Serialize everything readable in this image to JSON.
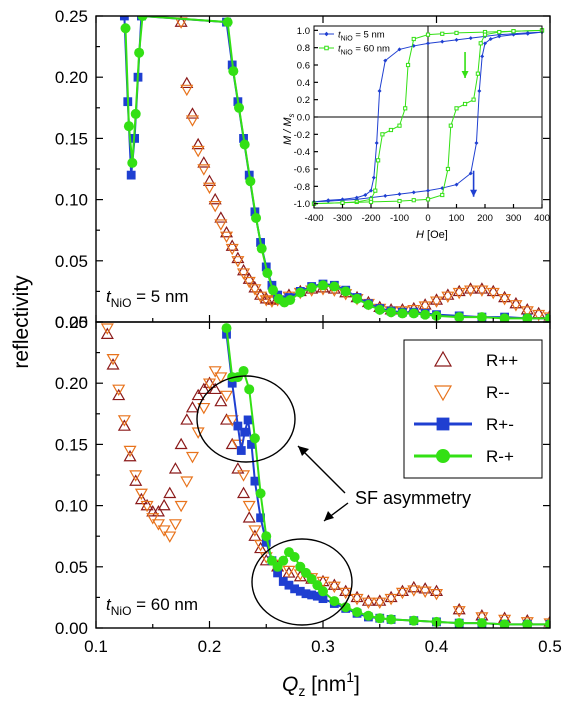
{
  "chart_data": [
    {
      "panel": "top",
      "type": "scatter",
      "ylabel": "reflectivity",
      "xlabel": "",
      "xlim": [
        0.1,
        0.5
      ],
      "ylim": [
        0.0,
        0.25
      ],
      "xticks": [
        "0.1",
        "0.2",
        "0.3",
        "0.4",
        "0.5"
      ],
      "yticks": [
        "0.00",
        "0.05",
        "0.10",
        "0.15",
        "0.20",
        "0.25"
      ],
      "annotation": {
        "t": "t",
        "sub": "NiO",
        "rest": " = 5 nm"
      },
      "series": [
        {
          "name": "R++",
          "marker": "triangle-up",
          "color": "#8b1a1a",
          "x": [
            0.175,
            0.18,
            0.185,
            0.19,
            0.195,
            0.2,
            0.205,
            0.21,
            0.215,
            0.22,
            0.225,
            0.23,
            0.235,
            0.24,
            0.245,
            0.25,
            0.255,
            0.26,
            0.27,
            0.28,
            0.29,
            0.3,
            0.31,
            0.32,
            0.33,
            0.34,
            0.35,
            0.36,
            0.37,
            0.38,
            0.39,
            0.4,
            0.41,
            0.42,
            0.43,
            0.44,
            0.45,
            0.46,
            0.47,
            0.48,
            0.49,
            0.5
          ],
          "y": [
            0.245,
            0.195,
            0.17,
            0.145,
            0.13,
            0.115,
            0.1,
            0.085,
            0.073,
            0.062,
            0.052,
            0.042,
            0.035,
            0.028,
            0.022,
            0.019,
            0.018,
            0.019,
            0.022,
            0.025,
            0.027,
            0.028,
            0.027,
            0.024,
            0.02,
            0.016,
            0.012,
            0.01,
            0.01,
            0.011,
            0.014,
            0.018,
            0.022,
            0.025,
            0.027,
            0.027,
            0.025,
            0.02,
            0.015,
            0.01,
            0.007,
            0.005
          ]
        },
        {
          "name": "R--",
          "marker": "triangle-down",
          "color": "#e8731c",
          "x": [
            0.175,
            0.18,
            0.185,
            0.19,
            0.195,
            0.2,
            0.205,
            0.21,
            0.215,
            0.22,
            0.225,
            0.23,
            0.235,
            0.24,
            0.245,
            0.25,
            0.255,
            0.26,
            0.27,
            0.28,
            0.29,
            0.3,
            0.31,
            0.32,
            0.33,
            0.34,
            0.35,
            0.36,
            0.37,
            0.38,
            0.39,
            0.4,
            0.41,
            0.42,
            0.43,
            0.44,
            0.45,
            0.46,
            0.47,
            0.48,
            0.49,
            0.5
          ],
          "y": [
            0.245,
            0.19,
            0.165,
            0.14,
            0.125,
            0.11,
            0.095,
            0.08,
            0.07,
            0.06,
            0.05,
            0.04,
            0.033,
            0.027,
            0.021,
            0.018,
            0.017,
            0.018,
            0.021,
            0.024,
            0.026,
            0.027,
            0.026,
            0.023,
            0.019,
            0.015,
            0.011,
            0.009,
            0.009,
            0.01,
            0.013,
            0.017,
            0.021,
            0.024,
            0.026,
            0.026,
            0.024,
            0.019,
            0.014,
            0.009,
            0.006,
            0.004
          ]
        },
        {
          "name": "R+-",
          "marker": "square",
          "color": "#1f3fd1",
          "x": [
            0.125,
            0.128,
            0.131,
            0.134,
            0.137,
            0.14,
            0.215,
            0.22,
            0.225,
            0.23,
            0.235,
            0.24,
            0.245,
            0.25,
            0.255,
            0.26,
            0.265,
            0.27,
            0.28,
            0.29,
            0.3,
            0.31,
            0.32,
            0.33,
            0.34,
            0.35,
            0.36,
            0.37,
            0.38,
            0.39,
            0.4,
            0.42,
            0.44,
            0.46,
            0.48,
            0.5
          ],
          "y": [
            0.25,
            0.18,
            0.12,
            0.15,
            0.2,
            0.25,
            0.245,
            0.21,
            0.18,
            0.15,
            0.12,
            0.09,
            0.065,
            0.045,
            0.03,
            0.022,
            0.018,
            0.02,
            0.025,
            0.029,
            0.031,
            0.03,
            0.026,
            0.02,
            0.015,
            0.011,
            0.009,
            0.008,
            0.008,
            0.007,
            0.006,
            0.005,
            0.004,
            0.004,
            0.003,
            0.003
          ]
        },
        {
          "name": "R-+",
          "marker": "circle",
          "color": "#33e014",
          "x": [
            0.126,
            0.129,
            0.132,
            0.135,
            0.138,
            0.141,
            0.216,
            0.221,
            0.226,
            0.231,
            0.236,
            0.241,
            0.246,
            0.251,
            0.256,
            0.261,
            0.266,
            0.271,
            0.28,
            0.29,
            0.3,
            0.31,
            0.32,
            0.33,
            0.34,
            0.35,
            0.36,
            0.37,
            0.38,
            0.39,
            0.4,
            0.42,
            0.44,
            0.46,
            0.48,
            0.5
          ],
          "y": [
            0.24,
            0.16,
            0.13,
            0.17,
            0.22,
            0.25,
            0.245,
            0.205,
            0.175,
            0.145,
            0.115,
            0.085,
            0.06,
            0.04,
            0.026,
            0.019,
            0.016,
            0.018,
            0.024,
            0.028,
            0.03,
            0.029,
            0.025,
            0.019,
            0.014,
            0.01,
            0.008,
            0.007,
            0.007,
            0.006,
            0.005,
            0.004,
            0.004,
            0.003,
            0.003,
            0.003
          ]
        }
      ]
    },
    {
      "panel": "bottom",
      "type": "scatter",
      "ylabel": "",
      "xlabel": "Q",
      "xlabel_sub": "z",
      "xlabel_unit": " [nm",
      "xlabel_sup": "1",
      "xlabel_end": "]",
      "xlim": [
        0.1,
        0.5
      ],
      "ylim": [
        0.0,
        0.25
      ],
      "xticks": [
        "0.1",
        "0.2",
        "0.3",
        "0.4",
        "0.5"
      ],
      "yticks": [
        "0.00",
        "0.05",
        "0.10",
        "0.15",
        "0.20",
        "0.25"
      ],
      "annotation": {
        "t": "t",
        "sub": "NiO",
        "rest": " = 60 nm"
      },
      "callout": "SF asymmetry",
      "series": [
        {
          "name": "R++",
          "marker": "triangle-up",
          "color": "#8b1a1a",
          "x": [
            0.11,
            0.115,
            0.12,
            0.125,
            0.13,
            0.135,
            0.14,
            0.145,
            0.15,
            0.155,
            0.16,
            0.165,
            0.17,
            0.175,
            0.18,
            0.185,
            0.19,
            0.195,
            0.2,
            0.205,
            0.21,
            0.215,
            0.22,
            0.225,
            0.23,
            0.235,
            0.24,
            0.245,
            0.25,
            0.26,
            0.27,
            0.28,
            0.29,
            0.3,
            0.31,
            0.32,
            0.33,
            0.34,
            0.35,
            0.36,
            0.37,
            0.38,
            0.39,
            0.4,
            0.42,
            0.44,
            0.46,
            0.48,
            0.5
          ],
          "y": [
            0.24,
            0.215,
            0.19,
            0.165,
            0.14,
            0.12,
            0.105,
            0.1,
            0.095,
            0.095,
            0.1,
            0.11,
            0.13,
            0.15,
            0.17,
            0.18,
            0.19,
            0.195,
            0.2,
            0.195,
            0.185,
            0.17,
            0.15,
            0.13,
            0.11,
            0.09,
            0.075,
            0.065,
            0.055,
            0.05,
            0.045,
            0.042,
            0.04,
            0.038,
            0.035,
            0.03,
            0.025,
            0.022,
            0.022,
            0.025,
            0.03,
            0.033,
            0.032,
            0.03,
            0.015,
            0.01,
            0.008,
            0.006,
            0.005
          ]
        },
        {
          "name": "R--",
          "marker": "triangle-down",
          "color": "#e8731c",
          "x": [
            0.11,
            0.115,
            0.12,
            0.125,
            0.13,
            0.135,
            0.14,
            0.145,
            0.15,
            0.155,
            0.16,
            0.165,
            0.17,
            0.175,
            0.18,
            0.185,
            0.19,
            0.195,
            0.2,
            0.205,
            0.21,
            0.215,
            0.22,
            0.225,
            0.23,
            0.235,
            0.24,
            0.245,
            0.25,
            0.26,
            0.27,
            0.28,
            0.29,
            0.3,
            0.31,
            0.32,
            0.33,
            0.34,
            0.35,
            0.36,
            0.37,
            0.38,
            0.39,
            0.4,
            0.42,
            0.44,
            0.46,
            0.48,
            0.5
          ],
          "y": [
            0.245,
            0.22,
            0.195,
            0.17,
            0.145,
            0.125,
            0.11,
            0.1,
            0.09,
            0.085,
            0.08,
            0.075,
            0.085,
            0.1,
            0.12,
            0.14,
            0.16,
            0.18,
            0.2,
            0.21,
            0.205,
            0.19,
            0.17,
            0.15,
            0.125,
            0.1,
            0.08,
            0.068,
            0.058,
            0.052,
            0.047,
            0.044,
            0.041,
            0.038,
            0.034,
            0.029,
            0.024,
            0.021,
            0.021,
            0.024,
            0.029,
            0.031,
            0.03,
            0.028,
            0.014,
            0.009,
            0.007,
            0.005,
            0.004
          ]
        },
        {
          "name": "R+-",
          "marker": "square",
          "color": "#1f3fd1",
          "x": [
            0.215,
            0.22,
            0.225,
            0.228,
            0.231,
            0.234,
            0.237,
            0.24,
            0.245,
            0.25,
            0.255,
            0.26,
            0.265,
            0.27,
            0.275,
            0.28,
            0.285,
            0.29,
            0.295,
            0.3,
            0.31,
            0.32,
            0.33,
            0.34,
            0.35,
            0.36,
            0.38,
            0.4,
            0.42,
            0.44,
            0.46,
            0.48,
            0.5
          ],
          "y": [
            0.24,
            0.2,
            0.165,
            0.145,
            0.16,
            0.17,
            0.15,
            0.12,
            0.09,
            0.07,
            0.055,
            0.045,
            0.038,
            0.035,
            0.032,
            0.03,
            0.028,
            0.027,
            0.026,
            0.024,
            0.02,
            0.016,
            0.012,
            0.009,
            0.008,
            0.007,
            0.006,
            0.005,
            0.004,
            0.004,
            0.003,
            0.003,
            0.003
          ]
        },
        {
          "name": "R-+",
          "marker": "circle",
          "color": "#33e014",
          "x": [
            0.215,
            0.22,
            0.225,
            0.23,
            0.235,
            0.24,
            0.245,
            0.25,
            0.255,
            0.26,
            0.265,
            0.27,
            0.275,
            0.28,
            0.285,
            0.29,
            0.295,
            0.3,
            0.31,
            0.32,
            0.33,
            0.34,
            0.35,
            0.36,
            0.38,
            0.4,
            0.42,
            0.44,
            0.46,
            0.48,
            0.5
          ],
          "y": [
            0.245,
            0.205,
            0.205,
            0.21,
            0.195,
            0.155,
            0.11,
            0.075,
            0.055,
            0.05,
            0.055,
            0.062,
            0.058,
            0.05,
            0.045,
            0.04,
            0.035,
            0.03,
            0.022,
            0.017,
            0.013,
            0.01,
            0.008,
            0.007,
            0.006,
            0.005,
            0.004,
            0.004,
            0.003,
            0.003,
            0.003
          ]
        }
      ]
    },
    {
      "panel": "inset",
      "type": "line",
      "xlabel": "H",
      "xlabel_unit": " [Oe]",
      "ylabel": "M / M",
      "ylabel_sub": "s",
      "xlim": [
        -400,
        400
      ],
      "ylim": [
        -1.05,
        1.05
      ],
      "xticks": [
        "-400",
        "-300",
        "-200",
        "-100",
        "0",
        "100",
        "200",
        "300",
        "400"
      ],
      "yticks": [
        "-1.0",
        "-0.8",
        "-0.6",
        "-0.4",
        "-0.2",
        "0.0",
        "0.2",
        "0.4",
        "0.6",
        "0.8",
        "1.0"
      ],
      "series": [
        {
          "name": "t_NiO = 5 nm",
          "legend_t": "t",
          "legend_sub": "NiO",
          "legend_rest": " = 5 nm",
          "marker": "diamond",
          "color": "#1f3fd1",
          "branches": [
            {
              "x": [
                400,
                350,
                300,
                250,
                200,
                150,
                100,
                50,
                0,
                -50,
                -100,
                -150,
                -170,
                -180,
                -190,
                -200,
                -220,
                -250,
                -300,
                -350,
                -400
              ],
              "y": [
                0.98,
                0.97,
                0.96,
                0.95,
                0.93,
                0.91,
                0.89,
                0.87,
                0.85,
                0.82,
                0.78,
                0.65,
                0.3,
                -0.3,
                -0.7,
                -0.85,
                -0.9,
                -0.93,
                -0.95,
                -0.96,
                -0.98
              ]
            },
            {
              "x": [
                -400,
                -350,
                -300,
                -250,
                -200,
                -150,
                -100,
                -50,
                0,
                50,
                100,
                150,
                170,
                180,
                190,
                200,
                220,
                250,
                300,
                350,
                400
              ],
              "y": [
                -0.98,
                -0.97,
                -0.96,
                -0.95,
                -0.93,
                -0.91,
                -0.89,
                -0.87,
                -0.85,
                -0.82,
                -0.78,
                -0.65,
                -0.3,
                0.3,
                0.7,
                0.85,
                0.9,
                0.93,
                0.95,
                0.96,
                0.98
              ]
            }
          ]
        },
        {
          "name": "t_NiO = 60 nm",
          "legend_t": "t",
          "legend_sub": "NiO",
          "legend_rest": " = 60 nm",
          "marker": "square-open",
          "color": "#33e014",
          "branches": [
            {
              "x": [
                400,
                300,
                200,
                100,
                50,
                0,
                -50,
                -70,
                -80,
                -100,
                -130,
                -160,
                -175,
                -185,
                -200,
                -250,
                -300,
                -400
              ],
              "y": [
                1.0,
                0.99,
                0.98,
                0.97,
                0.96,
                0.95,
                0.9,
                0.6,
                0.1,
                -0.1,
                -0.15,
                -0.2,
                -0.5,
                -0.85,
                -0.95,
                -0.98,
                -0.99,
                -1.0
              ]
            },
            {
              "x": [
                -400,
                -300,
                -200,
                -100,
                -50,
                0,
                50,
                70,
                80,
                100,
                130,
                160,
                175,
                185,
                200,
                250,
                300,
                400
              ],
              "y": [
                -1.0,
                -0.99,
                -0.98,
                -0.97,
                -0.96,
                -0.95,
                -0.9,
                -0.6,
                -0.1,
                0.1,
                0.15,
                0.2,
                0.5,
                0.85,
                0.95,
                0.98,
                0.99,
                1.0
              ]
            }
          ]
        }
      ],
      "arrows": [
        {
          "color": "#33e014",
          "x": 130,
          "y_from": 0.75,
          "y_to": 0.45
        },
        {
          "color": "#1f3fd1",
          "x": 160,
          "y_from": -0.62,
          "y_to": -0.92
        }
      ]
    }
  ],
  "legend": [
    {
      "label": "R++",
      "marker": "triangle-up",
      "color": "#8b1a1a"
    },
    {
      "label": "R--",
      "marker": "triangle-down",
      "color": "#e8731c"
    },
    {
      "label": "R+-",
      "marker": "square",
      "color": "#1f3fd1"
    },
    {
      "label": "R-+",
      "marker": "circle",
      "color": "#33e014"
    }
  ]
}
